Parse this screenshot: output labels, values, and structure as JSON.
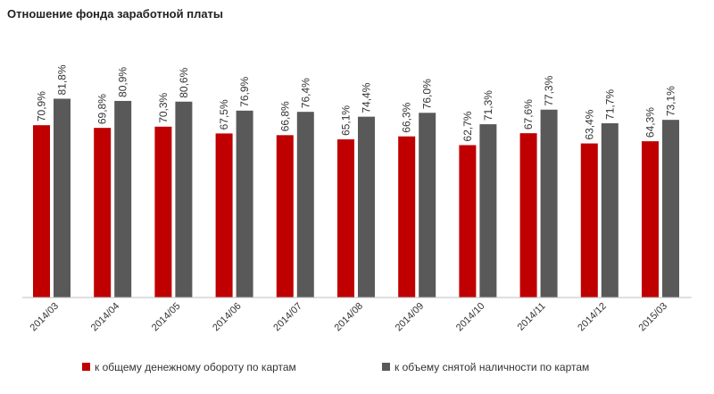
{
  "chart_data": {
    "type": "bar",
    "title": "Отношение фонда заработной платы",
    "categories": [
      "2014/03",
      "2014/04",
      "2014/05",
      "2014/06",
      "2014/07",
      "2014/08",
      "2014/09",
      "2014/10",
      "2014/11",
      "2014/12",
      "2015/03"
    ],
    "series": [
      {
        "name": "к общему денежному обороту по картам",
        "color": "#c00000",
        "values": [
          70.9,
          69.8,
          70.3,
          67.5,
          66.8,
          65.1,
          66.3,
          62.7,
          67.6,
          63.4,
          64.3
        ],
        "labels": [
          "70,9%",
          "69,8%",
          "70,3%",
          "67,5%",
          "66,8%",
          "65,1%",
          "66,3%",
          "62,7%",
          "67,6%",
          "63,4%",
          "64,3%"
        ]
      },
      {
        "name": "к объему снятой наличности по картам",
        "color": "#595959",
        "values": [
          81.8,
          80.9,
          80.6,
          76.9,
          76.4,
          74.4,
          76.0,
          71.3,
          77.3,
          71.7,
          73.1
        ],
        "labels": [
          "81,8%",
          "80,9%",
          "80,6%",
          "76,9%",
          "76,4%",
          "74,4%",
          "76,0%",
          "71,3%",
          "77,3%",
          "71,7%",
          "73,1%"
        ]
      }
    ],
    "ylim": [
      0,
      100
    ],
    "grid": false,
    "legend_position": "bottom",
    "xlabel": "",
    "ylabel": ""
  }
}
